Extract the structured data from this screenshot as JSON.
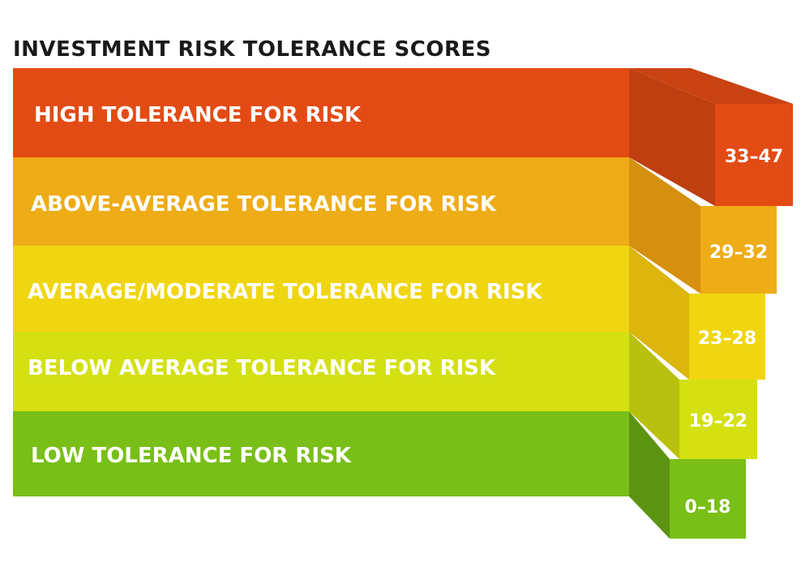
{
  "title": "INVESTMENT RISK TOLERANCE SCORES",
  "tiers": [
    {
      "label": "HIGH TOLERANCE FOR RISK",
      "range": "33–47",
      "color": "#e34b14",
      "side": "#bf3f10",
      "top_shade": "#c94212"
    },
    {
      "label": "ABOVE-AVERAGE TOLERANCE FOR RISK",
      "range": "29–32",
      "color": "#eeac16",
      "side": "#d6900f",
      "top_shade": "#d6990f"
    },
    {
      "label": "AVERAGE/MODERATE TOLERANCE FOR RISK",
      "range": "23–28",
      "color": "#f0d611",
      "side": "#dcb50d",
      "top_shade": "#e0c20d"
    },
    {
      "label": "BELOW AVERAGE TOLERANCE FOR RISK",
      "range": "19–22",
      "color": "#d4e012",
      "side": "#b9c10f",
      "top_shade": "#c2cc10"
    },
    {
      "label": "LOW TOLERANCE FOR RISK",
      "range": "0–18",
      "color": "#79bf18",
      "side": "#5c9412",
      "top_shade": "#6aa815"
    }
  ]
}
